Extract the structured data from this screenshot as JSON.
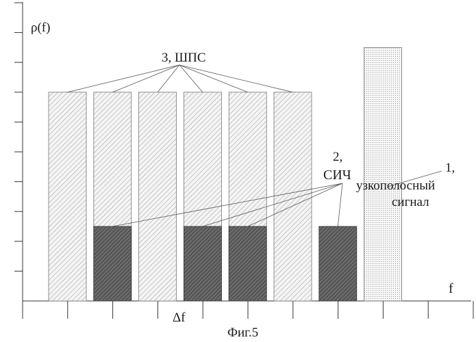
{
  "axes": {
    "y_label": "ρ(f)",
    "x_label": "f",
    "delta_label": "Δf"
  },
  "labels": {
    "broadband": "3, ШПС",
    "jammer_number": "2,",
    "jammer_name": "СИЧ",
    "narrowband_number": "1,",
    "narrowband_line1": "узкополосный",
    "narrowband_line2": "сигнал"
  },
  "caption": "Фиг.5",
  "spectrum": {
    "broadband_channels": 6,
    "jammed_channel_positions": [
      2,
      4,
      5,
      7
    ],
    "broadband_level": 0.7,
    "jammer_level": 0.25,
    "narrowband_level": 0.85
  },
  "colors": {
    "axis": "#333333",
    "hatch_light": "#9a9a9a",
    "hatch_dark": "#333333",
    "jammer_fill": "#5a5a5a",
    "dots": "#8a8a8a"
  }
}
